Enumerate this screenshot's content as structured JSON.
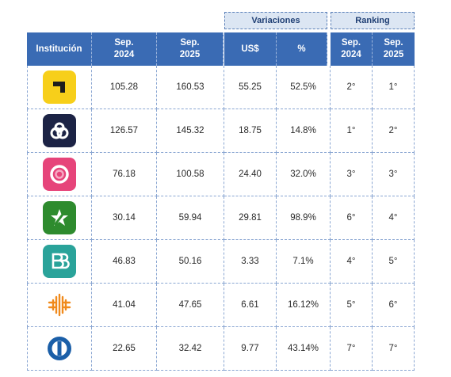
{
  "group_headers": {
    "variaciones": "Variaciones",
    "ranking": "Ranking"
  },
  "headers": {
    "institucion": "Institución",
    "sep2024_a": "Sep.",
    "sep2024_b": "2024",
    "sep2025_a": "Sep.",
    "sep2025_b": "2025",
    "usd": "US$",
    "pct": "%",
    "rank2024_a": "Sep.",
    "rank2024_b": "2024",
    "rank2025_a": "Sep.",
    "rank2025_b": "2025"
  },
  "rows": [
    {
      "logo": "yellow-corner-logo-icon",
      "sep2024": "105.28",
      "sep2025": "160.53",
      "usd": "55.25",
      "pct": "52.5%",
      "rank2024": "2°",
      "rank2025": "1°"
    },
    {
      "logo": "infinity-loop-logo-icon",
      "sep2024": "126.57",
      "sep2025": "145.32",
      "usd": "18.75",
      "pct": "14.8%",
      "rank2024": "1°",
      "rank2025": "2°"
    },
    {
      "logo": "pink-swirl-logo-icon",
      "sep2024": "76.18",
      "sep2025": "100.58",
      "usd": "24.40",
      "pct": "32.0%",
      "rank2024": "3°",
      "rank2025": "3°"
    },
    {
      "logo": "green-star-logo-icon",
      "sep2024": "30.14",
      "sep2025": "59.94",
      "usd": "29.81",
      "pct": "98.9%",
      "rank2024": "6°",
      "rank2025": "4°"
    },
    {
      "logo": "teal-bb-logo-icon",
      "sep2024": "46.83",
      "sep2025": "50.16",
      "usd": "3.33",
      "pct": "7.1%",
      "rank2024": "4°",
      "rank2025": "5°"
    },
    {
      "logo": "orange-lines-logo-icon",
      "sep2024": "41.04",
      "sep2025": "47.65",
      "usd": "6.61",
      "pct": "16.12%",
      "rank2024": "5°",
      "rank2025": "6°"
    },
    {
      "logo": "blue-circle-logo-icon",
      "sep2024": "22.65",
      "sep2025": "32.42",
      "usd": "9.77",
      "pct": "43.14%",
      "rank2024": "7°",
      "rank2025": "7°"
    }
  ],
  "colors": {
    "header_blue": "#3a6bb4",
    "group_header_bg": "#dce6f3",
    "grid_dash": "#8aa6d2"
  }
}
